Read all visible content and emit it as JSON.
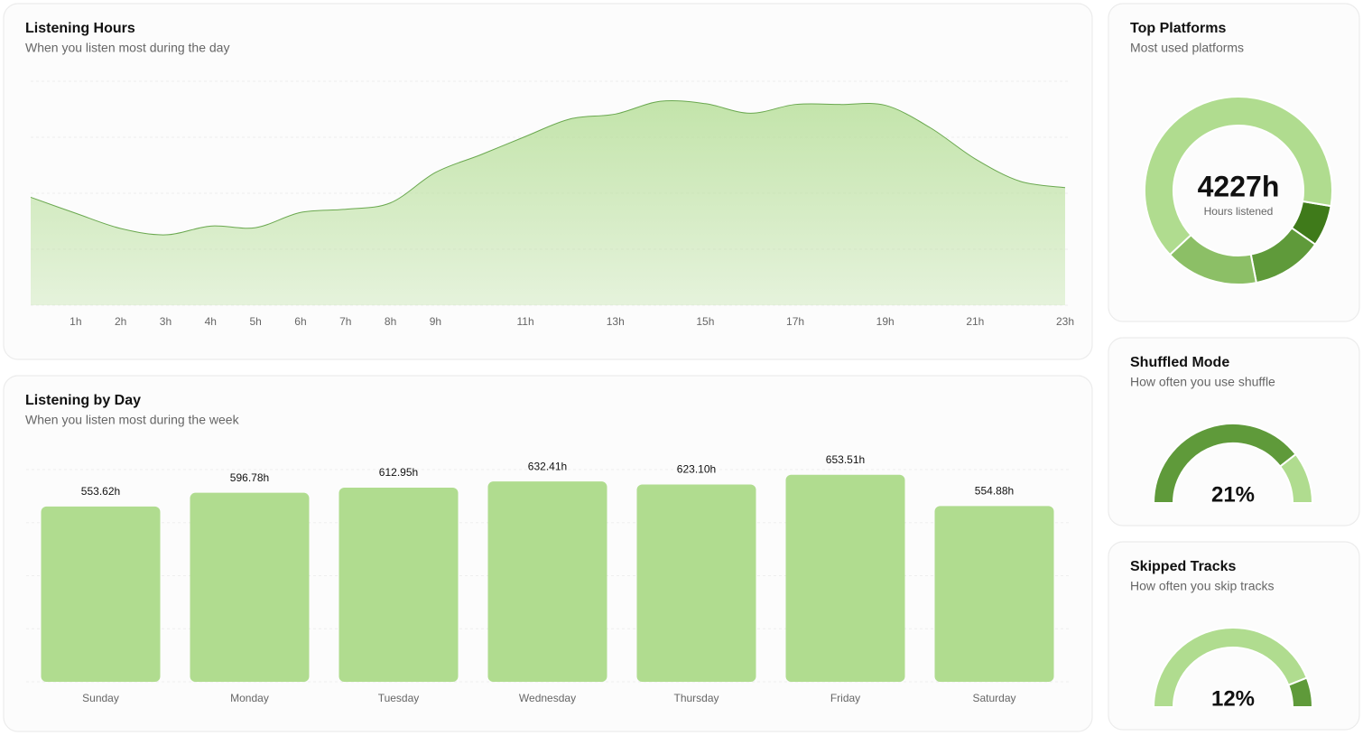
{
  "chart_data": [
    {
      "type": "area",
      "title": "Listening Hours",
      "subtitle": "When you listen most during the day",
      "categories": [
        null,
        "1h",
        "2h",
        "3h",
        "4h",
        "5h",
        "6h",
        "7h",
        "8h",
        "9h",
        null,
        "11h",
        null,
        "13h",
        null,
        "15h",
        null,
        "17h",
        null,
        "19h",
        null,
        "21h",
        null,
        "23h"
      ],
      "values": [
        135,
        115,
        96,
        88,
        99,
        97,
        116,
        120,
        128,
        166,
        188,
        211,
        233,
        239,
        255,
        252,
        240,
        251,
        251,
        250,
        222,
        183,
        155,
        147
      ],
      "color": "#b0dc8f",
      "ylim": [
        0,
        280
      ]
    },
    {
      "type": "bar",
      "title": "Listening by Day",
      "subtitle": "When you listen most during the week",
      "categories": [
        "Sunday",
        "Monday",
        "Tuesday",
        "Wednesday",
        "Thursday",
        "Friday",
        "Saturday"
      ],
      "values": [
        553.62,
        596.78,
        612.95,
        632.41,
        623.1,
        653.51,
        554.88
      ],
      "value_labels": [
        "553.62h",
        "596.78h",
        "612.95h",
        "632.41h",
        "623.10h",
        "653.51h",
        "554.88h"
      ],
      "color": "#b0dc8f",
      "ylim": [
        0,
        670
      ]
    },
    {
      "type": "pie",
      "title": "Top Platforms",
      "subtitle": "Most used platforms",
      "values": [
        300,
        516,
        680,
        2731
      ],
      "colors": [
        "#3f7a1a",
        "#5f9a3a",
        "#8cbf66",
        "#b0dc8f"
      ],
      "center_label": "4227h",
      "center_caption": "Hours listened"
    },
    {
      "type": "gauge",
      "title": "Shuffled Mode",
      "subtitle": "How often you use shuffle",
      "values": [
        21
      ],
      "value_labels": [
        "21%"
      ],
      "color": "#b0dc8f",
      "track_color": "#5f9a3a"
    },
    {
      "type": "gauge",
      "title": "Skipped Tracks",
      "subtitle": "How often you skip tracks",
      "values": [
        12
      ],
      "value_labels": [
        "12%"
      ],
      "color": "#5f9a3a",
      "track_color": "#b0dc8f"
    }
  ]
}
